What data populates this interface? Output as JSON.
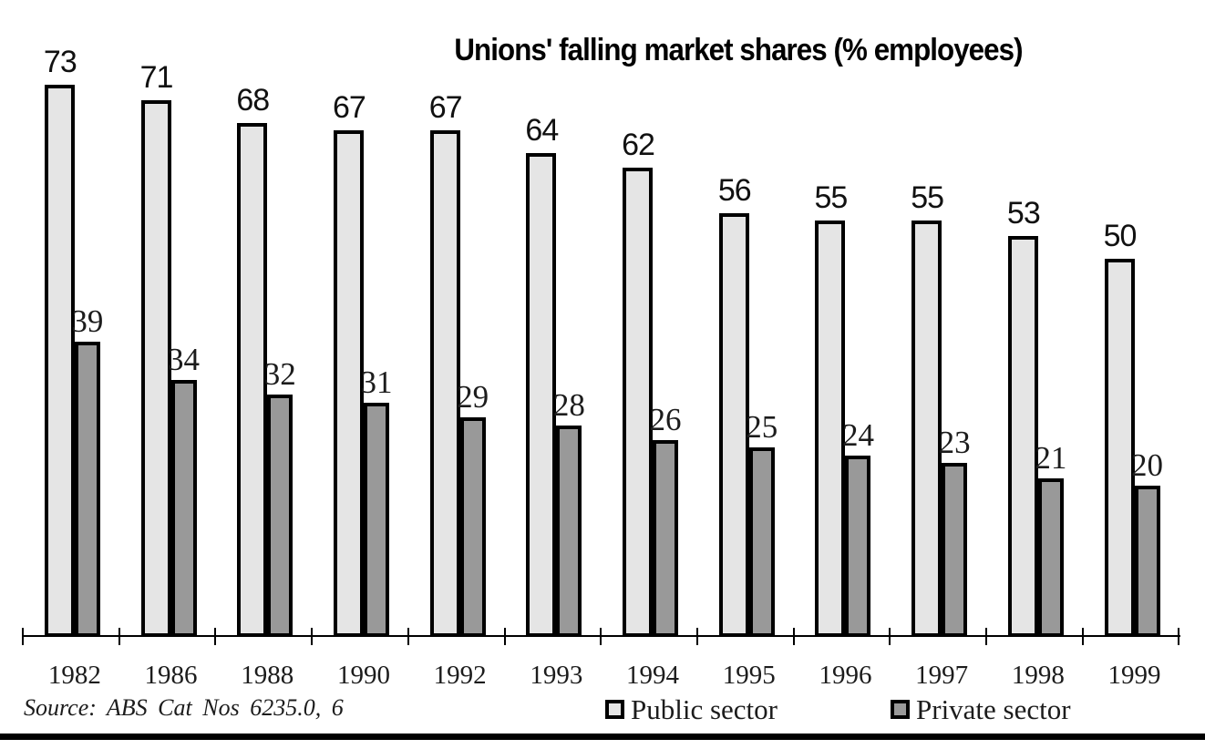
{
  "chart_data": {
    "type": "bar",
    "title": "Unions' falling market shares (% employees)",
    "categories": [
      "1982",
      "1986",
      "1988",
      "1990",
      "1992",
      "1993",
      "1994",
      "1995",
      "1996",
      "1997",
      "1998",
      "1999"
    ],
    "series": [
      {
        "name": "Public sector",
        "color": "#e5e5e5",
        "values": [
          73,
          71,
          68,
          67,
          67,
          64,
          62,
          56,
          55,
          55,
          53,
          50
        ]
      },
      {
        "name": "Private sector",
        "color": "#999999",
        "values": [
          39,
          34,
          32,
          31,
          29,
          28,
          26,
          25,
          24,
          23,
          21,
          20
        ]
      }
    ],
    "xlabel": "",
    "ylabel": "",
    "ylim": [
      0,
      84
    ],
    "grid": false,
    "data_labels": true,
    "legend_position": "bottom",
    "bar_border_color": "#000000"
  },
  "source_note": "Source: ABS Cat Nos 6235.0, 6",
  "colors": {
    "public_fill": "#e5e5e5",
    "private_fill": "#999999",
    "bar_border": "#000000",
    "bottom_rule": "#000000"
  }
}
